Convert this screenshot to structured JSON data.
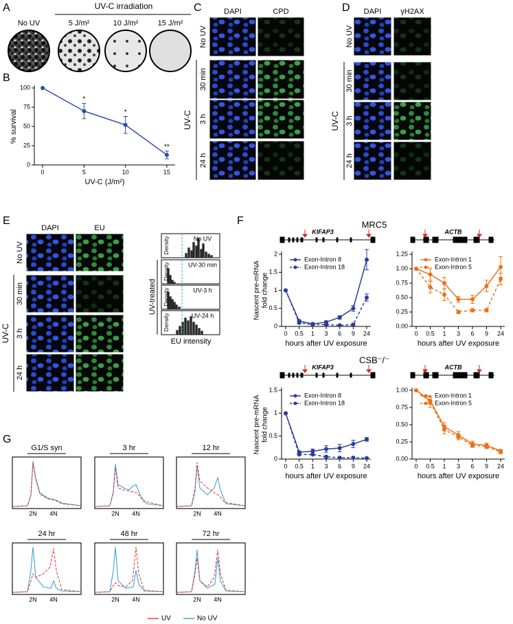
{
  "panel_labels": [
    "A",
    "B",
    "C",
    "D",
    "E",
    "F",
    "G"
  ],
  "panel_a": {
    "header": "UV-C irradiation",
    "dishes": [
      "No UV",
      "5 J/m²",
      "10 J/m²",
      "15 J/m²"
    ]
  },
  "panel_c": {
    "columns": [
      "DAPI",
      "CPD"
    ],
    "rows": [
      "No UV",
      "30 min",
      "3 h",
      "24 h"
    ],
    "group": "UV-C"
  },
  "panel_d": {
    "columns": [
      "DAPI",
      "γH2AX"
    ],
    "rows": [
      "No UV",
      "30 min",
      "3 h",
      "24 h"
    ],
    "group": "UV-C"
  },
  "panel_e": {
    "columns": [
      "DAPI",
      "EU"
    ],
    "rows": [
      "No UV",
      "30 min",
      "3 h",
      "24 h"
    ],
    "group": "UV-C",
    "histogram_labels": [
      "No UV",
      "UV-30 min",
      "UV-3 h",
      "UV-24 h"
    ],
    "density_label": "Density",
    "treated_label": "UV-treated",
    "x_label": "EU intensity"
  },
  "panel_f": {
    "cell_lines": [
      "MRC5",
      "CSB⁻/⁻"
    ],
    "genes": [
      "KIFAP3",
      "ACTB"
    ]
  },
  "panel_g": {
    "panels": [
      "G1/S syn",
      "3 hr",
      "12 hr",
      "24 hr",
      "48 hr",
      "72 hr"
    ],
    "x_labels": [
      "2N",
      "4N"
    ],
    "legend": [
      {
        "name": "UV",
        "color": "#e8413c"
      },
      {
        "name": "No UV",
        "color": "#3da5d9"
      }
    ]
  },
  "chart_data": [
    {
      "type": "line",
      "x_label": "UV-C (J/m²)",
      "y_label": "% survival",
      "x": [
        0,
        5,
        10,
        15
      ],
      "values": [
        100,
        70,
        52,
        13
      ],
      "errors": [
        null,
        10,
        11,
        5
      ],
      "value_annotations": [
        null,
        "*",
        "*",
        "**"
      ],
      "color": "#2b4ab0",
      "xlim": [
        -1,
        16
      ],
      "xticks": [
        0,
        5,
        10,
        15
      ],
      "ylim": [
        0,
        100
      ],
      "yticks": [
        0,
        25,
        50,
        75,
        100
      ]
    },
    {
      "type": "line",
      "x_label": "hours after UV exposure",
      "y_label": [
        "Nascent pre-mRNA",
        "fold change"
      ],
      "categories": [
        "0",
        "0.5",
        "1",
        "3",
        "6",
        "9",
        "24"
      ],
      "ylim": [
        0,
        2
      ],
      "yticks": [
        0,
        0.5,
        1,
        1.5,
        2
      ],
      "series": [
        {
          "name": "Exon-Intron 8",
          "color": "#2b3d9c",
          "dashed": false,
          "values": [
            1,
            0.15,
            0.07,
            0.12,
            0.25,
            0.5,
            1.85
          ],
          "errors": [
            0,
            0.03,
            0.02,
            0.03,
            0.05,
            0.08,
            0.28
          ]
        },
        {
          "name": "Exon-Intron 18",
          "color": "#2b3d9c",
          "dashed": true,
          "values": [
            1,
            0.1,
            0.05,
            0.05,
            0.03,
            0.05,
            0.8
          ],
          "errors": [
            0,
            0.03,
            0.02,
            0.02,
            0.02,
            0.03,
            0.1
          ]
        }
      ]
    },
    {
      "type": "line",
      "x_label": "hours after UV exposure",
      "categories": [
        "0",
        "0.5",
        "1",
        "3",
        "6",
        "9",
        "24"
      ],
      "ylim": [
        0,
        1.25
      ],
      "yticks": [
        {
          "value": 0,
          "label": "0.00"
        },
        {
          "value": 0.25,
          "label": "0.25"
        },
        {
          "value": 0.5,
          "label": "0.50"
        },
        {
          "value": 0.75,
          "label": "0.75"
        },
        {
          "value": 1,
          "label": "1.00"
        },
        {
          "value": 1.25,
          "label": "1.25"
        }
      ],
      "series": [
        {
          "name": "Exon-Intron 1",
          "color": "#e8731a",
          "dashed": false,
          "values": [
            1,
            0.9,
            0.75,
            0.47,
            0.47,
            0.7,
            1.03
          ],
          "errors": [
            0,
            0.1,
            0.1,
            0.05,
            0.07,
            0.1,
            0.18
          ]
        },
        {
          "name": "Exon-Intron 5",
          "color": "#e8731a",
          "dashed": true,
          "values": [
            1,
            0.68,
            0.55,
            0.25,
            0.28,
            0.28,
            0.82
          ],
          "errors": [
            0,
            0.1,
            0.1,
            0.03,
            0.03,
            0.03,
            0.1
          ]
        }
      ]
    },
    {
      "type": "line",
      "x_label": "hours after UV exposure",
      "y_label": [
        "Nascent pre-mRNA",
        "fold change"
      ],
      "categories": [
        "0",
        "0.5",
        "1",
        "3",
        "6",
        "9",
        "24"
      ],
      "ylim": [
        0,
        1.5
      ],
      "yticks": [
        0,
        0.5,
        1,
        1.5
      ],
      "series": [
        {
          "name": "Exon-Intron 8",
          "color": "#2b3d9c",
          "dashed": false,
          "values": [
            1,
            0.15,
            0.17,
            0.22,
            0.24,
            0.33,
            0.43
          ],
          "errors": [
            0,
            0.02,
            0.05,
            0.07,
            0.08,
            0.08,
            0.04
          ]
        },
        {
          "name": "Exon-Intron 18",
          "color": "#2b3d9c",
          "dashed": true,
          "values": [
            1,
            0.1,
            0.1,
            0.05,
            0.03,
            0.03,
            0.02
          ],
          "errors": [
            0,
            0.02,
            0.02,
            0.02,
            0.01,
            0.02,
            0.02
          ]
        }
      ]
    },
    {
      "type": "line",
      "x_label": "hours after UV exposure",
      "categories": [
        "0",
        "0.5",
        "1",
        "3",
        "6",
        "9",
        "24"
      ],
      "ylim": [
        0,
        1
      ],
      "yticks": [
        {
          "value": 0,
          "label": "0.00"
        },
        {
          "value": 0.25,
          "label": "0.25"
        },
        {
          "value": 0.5,
          "label": "0.50"
        },
        {
          "value": 0.75,
          "label": "0.75"
        },
        {
          "value": 1,
          "label": "1.00"
        }
      ],
      "series": [
        {
          "name": "Exon-Intron 1",
          "color": "#e8731a",
          "dashed": false,
          "values": [
            1,
            0.85,
            0.47,
            0.35,
            0.22,
            0.2,
            0.12
          ],
          "errors": [
            0,
            0.05,
            0.06,
            0.05,
            0.04,
            0.03,
            0.02
          ]
        },
        {
          "name": "Exon-Intron 5",
          "color": "#e8731a",
          "dashed": true,
          "values": [
            1,
            0.83,
            0.43,
            0.32,
            0.2,
            0.18,
            0.1
          ],
          "errors": [
            0,
            0.08,
            0.06,
            0.04,
            0.03,
            0.03,
            0.02
          ]
        }
      ]
    }
  ]
}
